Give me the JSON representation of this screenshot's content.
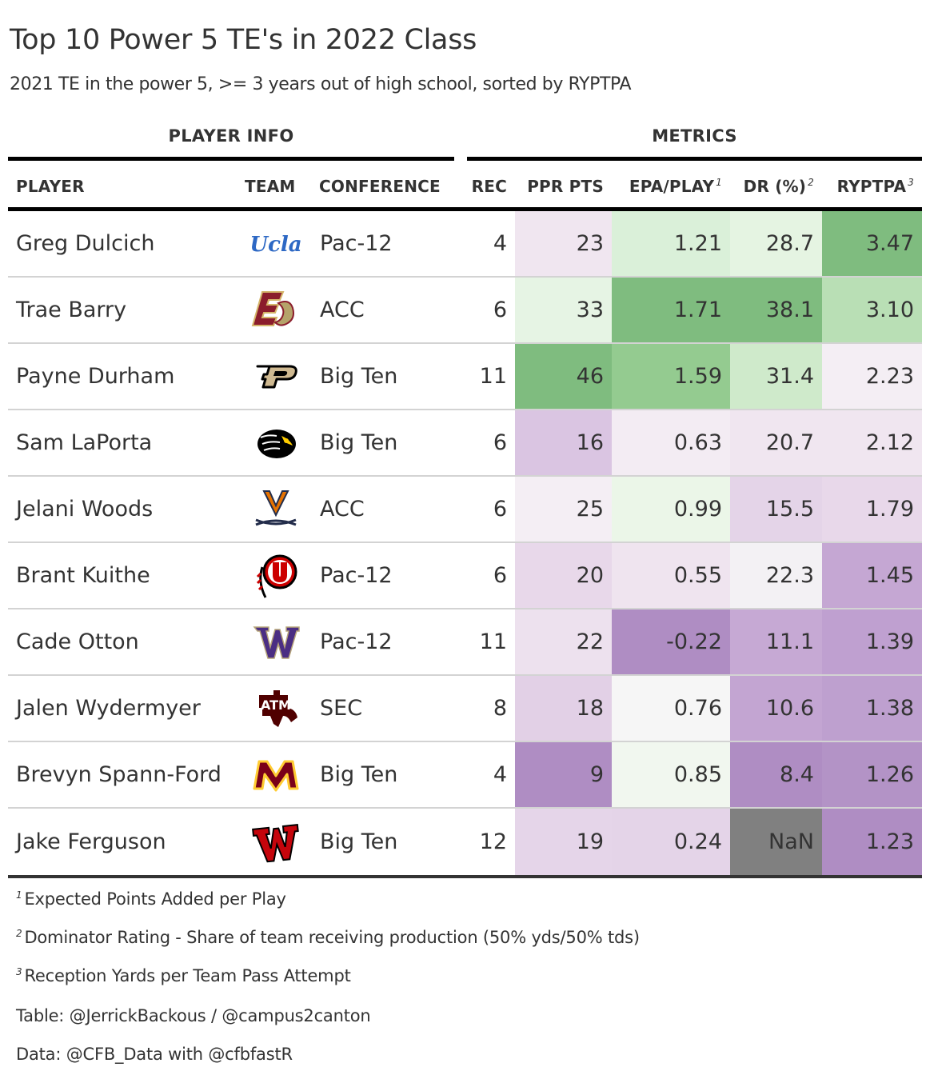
{
  "title": "Top 10 Power 5 TE's in 2022 Class",
  "subtitle": "2021 TE in the power 5, >= 3 years out of high school, sorted by RYPTPA",
  "spanners": {
    "player_info": "PLAYER INFO",
    "metrics": "METRICS"
  },
  "columns": {
    "player": "PLAYER",
    "team": "TEAM",
    "conference": "CONFERENCE",
    "rec": "REC",
    "ppr": "PPR PTS",
    "epa": "EPA/PLAY",
    "epa_note": "1",
    "dr": "DR (%)",
    "dr_note": "2",
    "ryp": "RYPTPA",
    "ryp_note": "3"
  },
  "rows": [
    {
      "player": "Greg Dulcich",
      "team_logo": "ucla-logo",
      "conference": "Pac-12",
      "rec": "4",
      "ppr": "23",
      "epa": "1.21",
      "dr": "28.7",
      "ryp": "3.47",
      "colors": {
        "ppr": "#f0e6f0",
        "epa": "#daf0d9",
        "dr": "#e5f4e2",
        "ryp": "#7fbc7f"
      }
    },
    {
      "player": "Trae Barry",
      "team_logo": "boston-college-logo",
      "conference": "ACC",
      "rec": "6",
      "ppr": "33",
      "epa": "1.71",
      "dr": "38.1",
      "ryp": "3.10",
      "colors": {
        "ppr": "#e6f4e4",
        "epa": "#7fbc7f",
        "dr": "#7fbc7f",
        "ryp": "#b9dfb5"
      }
    },
    {
      "player": "Payne Durham",
      "team_logo": "purdue-logo",
      "conference": "Big Ten",
      "rec": "11",
      "ppr": "46",
      "epa": "1.59",
      "dr": "31.4",
      "ryp": "2.23",
      "colors": {
        "ppr": "#7fbc7f",
        "epa": "#94cb90",
        "dr": "#cfeacb",
        "ryp": "#f4eef4"
      }
    },
    {
      "player": "Sam LaPorta",
      "team_logo": "iowa-logo",
      "conference": "Big Ten",
      "rec": "6",
      "ppr": "16",
      "epa": "0.63",
      "dr": "20.7",
      "ryp": "2.12",
      "colors": {
        "ppr": "#dac5e2",
        "epa": "#f3ecf3",
        "dr": "#f0e6f0",
        "ryp": "#f0e6f0"
      }
    },
    {
      "player": "Jelani Woods",
      "team_logo": "virginia-logo",
      "conference": "ACC",
      "rec": "6",
      "ppr": "25",
      "epa": "0.99",
      "dr": "15.5",
      "ryp": "1.79",
      "colors": {
        "ppr": "#f4eef4",
        "epa": "#ebf6e8",
        "dr": "#e4d4e8",
        "ryp": "#e8d8ea"
      }
    },
    {
      "player": "Brant Kuithe",
      "team_logo": "utah-logo",
      "conference": "Pac-12",
      "rec": "6",
      "ppr": "20",
      "epa": "0.55",
      "dr": "22.3",
      "ryp": "1.45",
      "colors": {
        "ppr": "#e8d8ea",
        "epa": "#efe4ef",
        "dr": "#f3f1f4",
        "ryp": "#c5a7d3"
      }
    },
    {
      "player": "Cade Otton",
      "team_logo": "washington-logo",
      "conference": "Pac-12",
      "rec": "11",
      "ppr": "22",
      "epa": "-0.22",
      "dr": "11.1",
      "ryp": "1.39",
      "colors": {
        "ppr": "#ede1ee",
        "epa": "#af8dc3",
        "dr": "#c6a9d4",
        "ryp": "#bfa0d0"
      }
    },
    {
      "player": "Jalen Wydermyer",
      "team_logo": "texas-am-logo",
      "conference": "SEC",
      "rec": "8",
      "ppr": "18",
      "epa": "0.76",
      "dr": "10.6",
      "ryp": "1.38",
      "colors": {
        "ppr": "#e2d0e6",
        "epa": "#f6f6f6",
        "dr": "#c3a5d2",
        "ryp": "#bea0cf"
      }
    },
    {
      "player": "Brevyn Spann-Ford",
      "team_logo": "minnesota-logo",
      "conference": "Big Ten",
      "rec": "4",
      "ppr": "9",
      "epa": "0.85",
      "dr": "8.4",
      "ryp": "1.26",
      "colors": {
        "ppr": "#af8dc3",
        "epa": "#f1f7ef",
        "dr": "#af8dc3",
        "ryp": "#b393c6"
      }
    },
    {
      "player": "Jake Ferguson",
      "team_logo": "wisconsin-logo",
      "conference": "Big Ten",
      "rec": "12",
      "ppr": "19",
      "epa": "0.24",
      "dr": "NaN",
      "ryp": "1.23",
      "colors": {
        "ppr": "#e5d5e9",
        "epa": "#e4d4e8",
        "dr": "#808080",
        "ryp": "#af8dc3"
      }
    }
  ],
  "footnotes": [
    {
      "mark": "1",
      "text": "Expected Points Added per Play"
    },
    {
      "mark": "2",
      "text": "Dominator Rating - Share of team receiving production (50% yds/50% tds)"
    },
    {
      "mark": "3",
      "text": "Reception Yards per Team Pass Attempt"
    }
  ],
  "source_notes": [
    "Table: @JerrickBackous / @campus2canton",
    "Data: @CFB_Data with @cfbfastR"
  ]
}
